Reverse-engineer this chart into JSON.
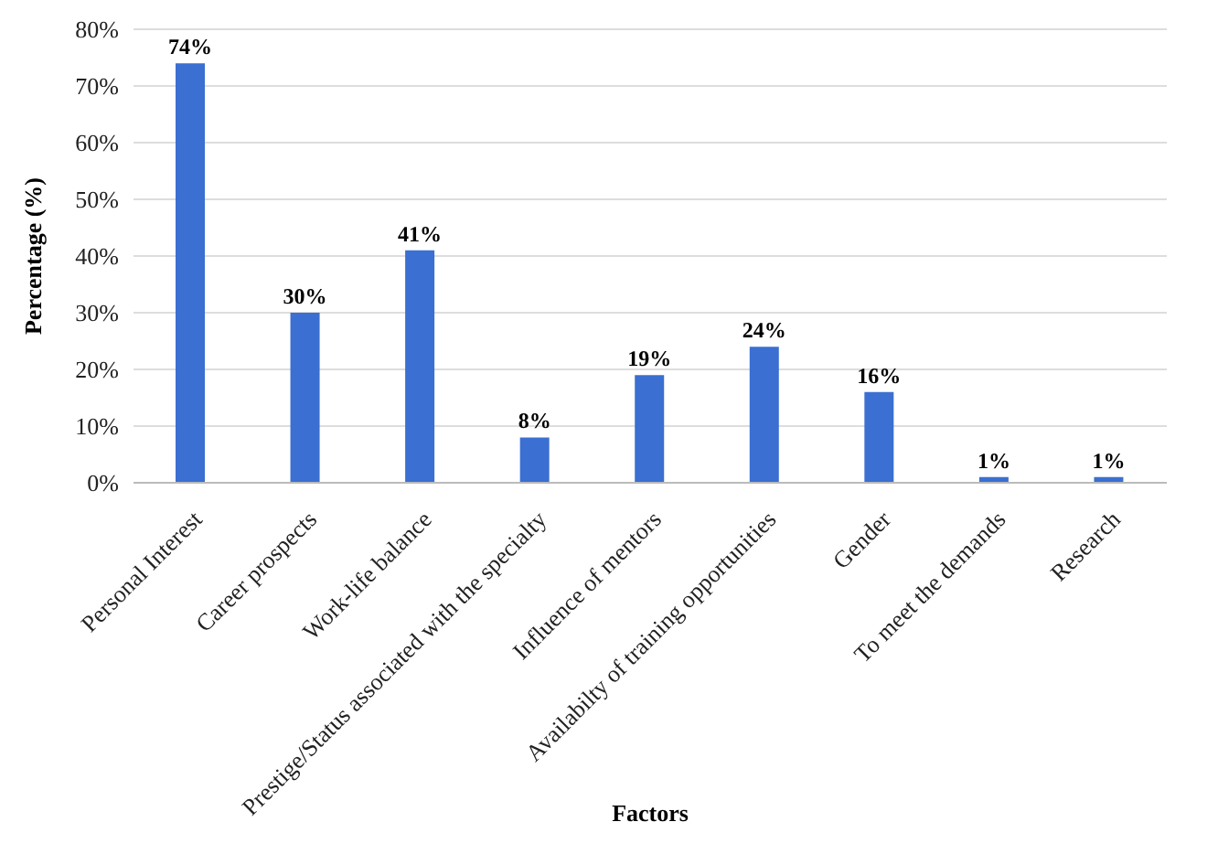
{
  "chart_data": {
    "type": "bar",
    "xlabel": "Factors",
    "ylabel": "Percentage (%)",
    "categories": [
      "Personal Interest",
      "Career prospects",
      "Work-life balance",
      "Prestige/Status associated with the specialty",
      "Influence of mentors",
      "Availabilty of training opportunities",
      "Gender",
      "To meet the demands",
      "Research"
    ],
    "values": [
      74,
      30,
      41,
      8,
      19,
      24,
      16,
      1,
      1
    ],
    "value_labels": [
      "74%",
      "30%",
      "41%",
      "8%",
      "19%",
      "24%",
      "16%",
      "1%",
      "1%"
    ],
    "color": "#3b6fd1",
    "ylim": [
      0,
      80
    ],
    "yticks": [
      {
        "value": 0,
        "label": "0%"
      },
      {
        "value": 10,
        "label": "10%"
      },
      {
        "value": 20,
        "label": "20%"
      },
      {
        "value": 30,
        "label": "30%"
      },
      {
        "value": 40,
        "label": "40%"
      },
      {
        "value": 50,
        "label": "50%"
      },
      {
        "value": 60,
        "label": "60%"
      },
      {
        "value": 70,
        "label": "70%"
      },
      {
        "value": 80,
        "label": "80%"
      }
    ],
    "grid": "y",
    "legend": false
  }
}
